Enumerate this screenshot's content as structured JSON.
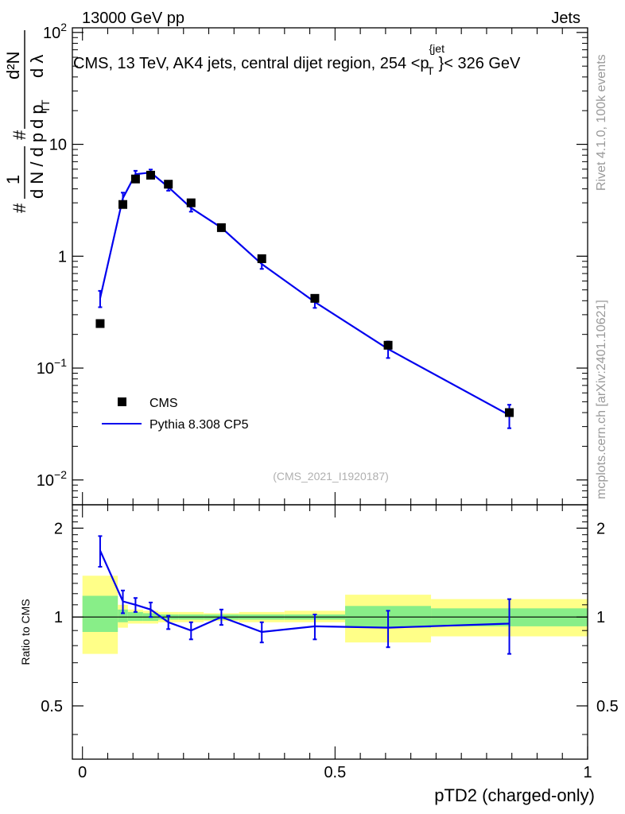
{
  "header": {
    "left": "13000 GeV pp",
    "right": "Jets",
    "side_label_top": "Rivet 4.1.0,  100k events",
    "side_label_bottom": "mcplots.cern.ch [arXiv:2401.10621]"
  },
  "chart_data": [
    {
      "type": "scatter",
      "title": "CMS, 13 TeV, AK4 jets, central dijet region, 254 <p_T^{jet}< 326 GeV",
      "title_main": "CMS, 13 TeV, AK4 jets, central dijet region, 254 <p",
      "title_sup": "{jet",
      "title_sub": "T",
      "title_tail": "}< 326 GeV",
      "ylabel": "# (1/dN/dp_T) # d²N/dp_T dλ",
      "ylabel_parts": {
        "hash": "#",
        "one": "1",
        "den": "d N / d p",
        "sub": "T",
        "num": "d²N",
        "num_den": "d p",
        "lambda": "d λ"
      },
      "yscale": "log",
      "ylim": [
        0.006,
        110
      ],
      "xlim": [
        -0.02,
        1.0
      ],
      "yticks": [
        {
          "value": 100,
          "base": "10",
          "exp": "2"
        },
        {
          "value": 10,
          "base": "10",
          "exp": ""
        },
        {
          "value": 1,
          "base": "1",
          "exp": ""
        },
        {
          "value": 0.1,
          "base": "10",
          "exp": "−1"
        },
        {
          "value": 0.01,
          "base": "10",
          "exp": "−2"
        }
      ],
      "watermark": "(CMS_2021_I1920187)",
      "legend_position": "lower-left",
      "series": [
        {
          "name": "CMS",
          "style": "markers",
          "color": "#000000",
          "x": [
            0.035,
            0.08,
            0.105,
            0.135,
            0.17,
            0.215,
            0.275,
            0.355,
            0.46,
            0.605,
            0.845
          ],
          "y": [
            0.25,
            2.9,
            4.9,
            5.3,
            4.4,
            3.0,
            1.8,
            0.95,
            0.42,
            0.16,
            0.04
          ]
        },
        {
          "name": "Pythia 8.308 CP5",
          "style": "line",
          "color": "#0000ee",
          "x": [
            0.035,
            0.08,
            0.105,
            0.135,
            0.17,
            0.215,
            0.275,
            0.355,
            0.46,
            0.605,
            0.845
          ],
          "y": [
            0.42,
            3.3,
            5.4,
            5.6,
            4.15,
            2.7,
            1.8,
            0.85,
            0.39,
            0.148,
            0.038
          ],
          "yerr_low": [
            0.07,
            0.4,
            0.4,
            0.35,
            0.3,
            0.2,
            0.12,
            0.08,
            0.045,
            0.025,
            0.009
          ],
          "yerr_high": [
            0.07,
            0.4,
            0.4,
            0.35,
            0.3,
            0.2,
            0.12,
            0.08,
            0.045,
            0.025,
            0.009
          ]
        }
      ]
    },
    {
      "type": "line",
      "ylabel": "Ratio to CMS",
      "xlabel": "pTD2 (charged-only)",
      "xlim": [
        -0.02,
        1.0
      ],
      "ylim": [
        0.33,
        2.4
      ],
      "yticks": [
        "0.5",
        "1",
        "2"
      ],
      "ytick_values": [
        0.5,
        1,
        2
      ],
      "xticks": [
        "0",
        "0.5",
        "1"
      ],
      "xtick_values": [
        0,
        0.5,
        1
      ],
      "bands": [
        {
          "x0": 0.0,
          "x1": 0.07,
          "green": [
            0.89,
            1.18
          ],
          "yellow": [
            0.75,
            1.38
          ]
        },
        {
          "x0": 0.07,
          "x1": 0.09,
          "green": [
            0.96,
            1.06
          ],
          "yellow": [
            0.92,
            1.1
          ]
        },
        {
          "x0": 0.09,
          "x1": 0.12,
          "green": [
            0.97,
            1.04
          ],
          "yellow": [
            0.95,
            1.06
          ]
        },
        {
          "x0": 0.12,
          "x1": 0.15,
          "green": [
            0.97,
            1.03
          ],
          "yellow": [
            0.95,
            1.05
          ]
        },
        {
          "x0": 0.15,
          "x1": 0.19,
          "green": [
            0.98,
            1.02
          ],
          "yellow": [
            0.96,
            1.04
          ]
        },
        {
          "x0": 0.19,
          "x1": 0.24,
          "green": [
            0.98,
            1.02
          ],
          "yellow": [
            0.96,
            1.04
          ]
        },
        {
          "x0": 0.24,
          "x1": 0.31,
          "green": [
            0.98,
            1.02
          ],
          "yellow": [
            0.97,
            1.03
          ]
        },
        {
          "x0": 0.31,
          "x1": 0.4,
          "green": [
            0.98,
            1.02
          ],
          "yellow": [
            0.96,
            1.04
          ]
        },
        {
          "x0": 0.4,
          "x1": 0.52,
          "green": [
            0.98,
            1.02
          ],
          "yellow": [
            0.96,
            1.05
          ]
        },
        {
          "x0": 0.52,
          "x1": 0.69,
          "green": [
            0.92,
            1.09
          ],
          "yellow": [
            0.82,
            1.19
          ]
        },
        {
          "x0": 0.69,
          "x1": 1.0,
          "green": [
            0.93,
            1.07
          ],
          "yellow": [
            0.86,
            1.15
          ]
        }
      ],
      "series": [
        {
          "name": "Pythia 8.308 CP5 / CMS",
          "color": "#0000ee",
          "x": [
            0.035,
            0.08,
            0.105,
            0.135,
            0.17,
            0.215,
            0.275,
            0.355,
            0.46,
            0.605,
            0.845
          ],
          "y": [
            1.68,
            1.13,
            1.1,
            1.06,
            0.96,
            0.9,
            1.0,
            0.89,
            0.93,
            0.92,
            0.95
          ],
          "yerr": [
            0.2,
            0.1,
            0.06,
            0.06,
            0.05,
            0.06,
            0.06,
            0.07,
            0.09,
            0.13,
            0.2
          ]
        }
      ]
    }
  ]
}
